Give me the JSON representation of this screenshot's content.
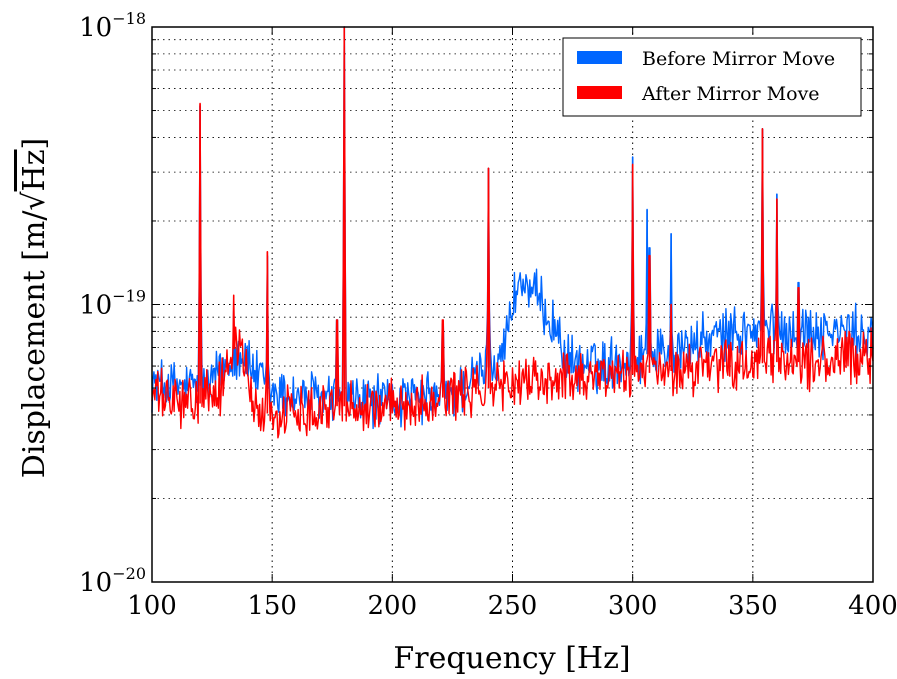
{
  "chart_data": {
    "type": "line",
    "title": "",
    "xlabel": "Frequency [Hz]",
    "ylabel_prefix": "Displacement [m/",
    "ylabel_radicand": "Hz",
    "ylabel_suffix": "]",
    "xlim": [
      100,
      400
    ],
    "ylim": [
      1e-20,
      1e-18
    ],
    "yscale": "log",
    "grid": true,
    "legend_position": "top-right",
    "x_ticks": [
      100,
      150,
      200,
      250,
      300,
      350,
      400
    ],
    "x_tick_labels": [
      "100",
      "150",
      "200",
      "250",
      "300",
      "350",
      "400"
    ],
    "y_ticks": [
      {
        "value": 1e-20,
        "base": "10",
        "exp": "−20"
      },
      {
        "value": 1e-19,
        "base": "10",
        "exp": "−19"
      },
      {
        "value": 1e-18,
        "base": "10",
        "exp": "−18"
      }
    ],
    "series": [
      {
        "name": "Before Mirror Move",
        "color": "#0066ff",
        "baseline": [
          [
            100,
            5.2e-20
          ],
          [
            115,
            5e-20
          ],
          [
            125,
            5.2e-20
          ],
          [
            130,
            6e-20
          ],
          [
            137,
            6.8e-20
          ],
          [
            143,
            5.6e-20
          ],
          [
            150,
            4.8e-20
          ],
          [
            170,
            4.6e-20
          ],
          [
            190,
            4.5e-20
          ],
          [
            210,
            4.5e-20
          ],
          [
            225,
            4.7e-20
          ],
          [
            235,
            5.5e-20
          ],
          [
            243,
            6.2e-20
          ],
          [
            248,
            8e-20
          ],
          [
            252,
            1.2e-19
          ],
          [
            256,
            1.15e-19
          ],
          [
            262,
            1e-19
          ],
          [
            268,
            8.2e-20
          ],
          [
            273,
            6.2e-20
          ],
          [
            285,
            6e-20
          ],
          [
            300,
            6.5e-20
          ],
          [
            310,
            6.7e-20
          ],
          [
            320,
            7e-20
          ],
          [
            340,
            7.8e-20
          ],
          [
            360,
            8.2e-20
          ],
          [
            380,
            8e-20
          ],
          [
            400,
            7.8e-20
          ]
        ],
        "peaks": [
          [
            120,
            5.2e-19
          ],
          [
            128,
            6.5e-20
          ],
          [
            134,
            9.5e-20
          ],
          [
            148,
            1.5e-19
          ],
          [
            177,
            8.8e-20
          ],
          [
            180,
            1e-18
          ],
          [
            221,
            8.5e-20
          ],
          [
            240,
            3.1e-19
          ],
          [
            300,
            3.4e-19
          ],
          [
            306,
            2.2e-19
          ],
          [
            307,
            1.6e-19
          ],
          [
            316,
            1.8e-19
          ],
          [
            342,
            8.5e-20
          ],
          [
            354,
            4.3e-19
          ],
          [
            360,
            2.5e-19
          ],
          [
            369,
            1.2e-19
          ]
        ]
      },
      {
        "name": "After Mirror Move",
        "color": "#ff0000",
        "baseline": [
          [
            100,
            4.8e-20
          ],
          [
            110,
            4.4e-20
          ],
          [
            120,
            4.4e-20
          ],
          [
            128,
            4.8e-20
          ],
          [
            133,
            6.8e-20
          ],
          [
            136,
            7.2e-20
          ],
          [
            139,
            6e-20
          ],
          [
            142,
            4.2e-20
          ],
          [
            150,
            4e-20
          ],
          [
            170,
            4.3e-20
          ],
          [
            200,
            4.3e-20
          ],
          [
            220,
            4.6e-20
          ],
          [
            240,
            5e-20
          ],
          [
            260,
            5.3e-20
          ],
          [
            280,
            5.6e-20
          ],
          [
            300,
            5.6e-20
          ],
          [
            320,
            5.8e-20
          ],
          [
            340,
            6e-20
          ],
          [
            360,
            6.2e-20
          ],
          [
            380,
            6.2e-20
          ],
          [
            400,
            6.5e-20
          ]
        ],
        "peaks": [
          [
            120,
            5.3e-19
          ],
          [
            128,
            6.2e-20
          ],
          [
            134,
            1.08e-19
          ],
          [
            148,
            1.55e-19
          ],
          [
            177,
            8.8e-20
          ],
          [
            180,
            1e-18
          ],
          [
            221,
            8.8e-20
          ],
          [
            240,
            3.1e-19
          ],
          [
            300,
            3.2e-19
          ],
          [
            307,
            1.5e-19
          ],
          [
            316,
            1e-19
          ],
          [
            354,
            4.3e-19
          ],
          [
            360,
            2.4e-19
          ],
          [
            369,
            1.15e-19
          ]
        ]
      }
    ]
  }
}
